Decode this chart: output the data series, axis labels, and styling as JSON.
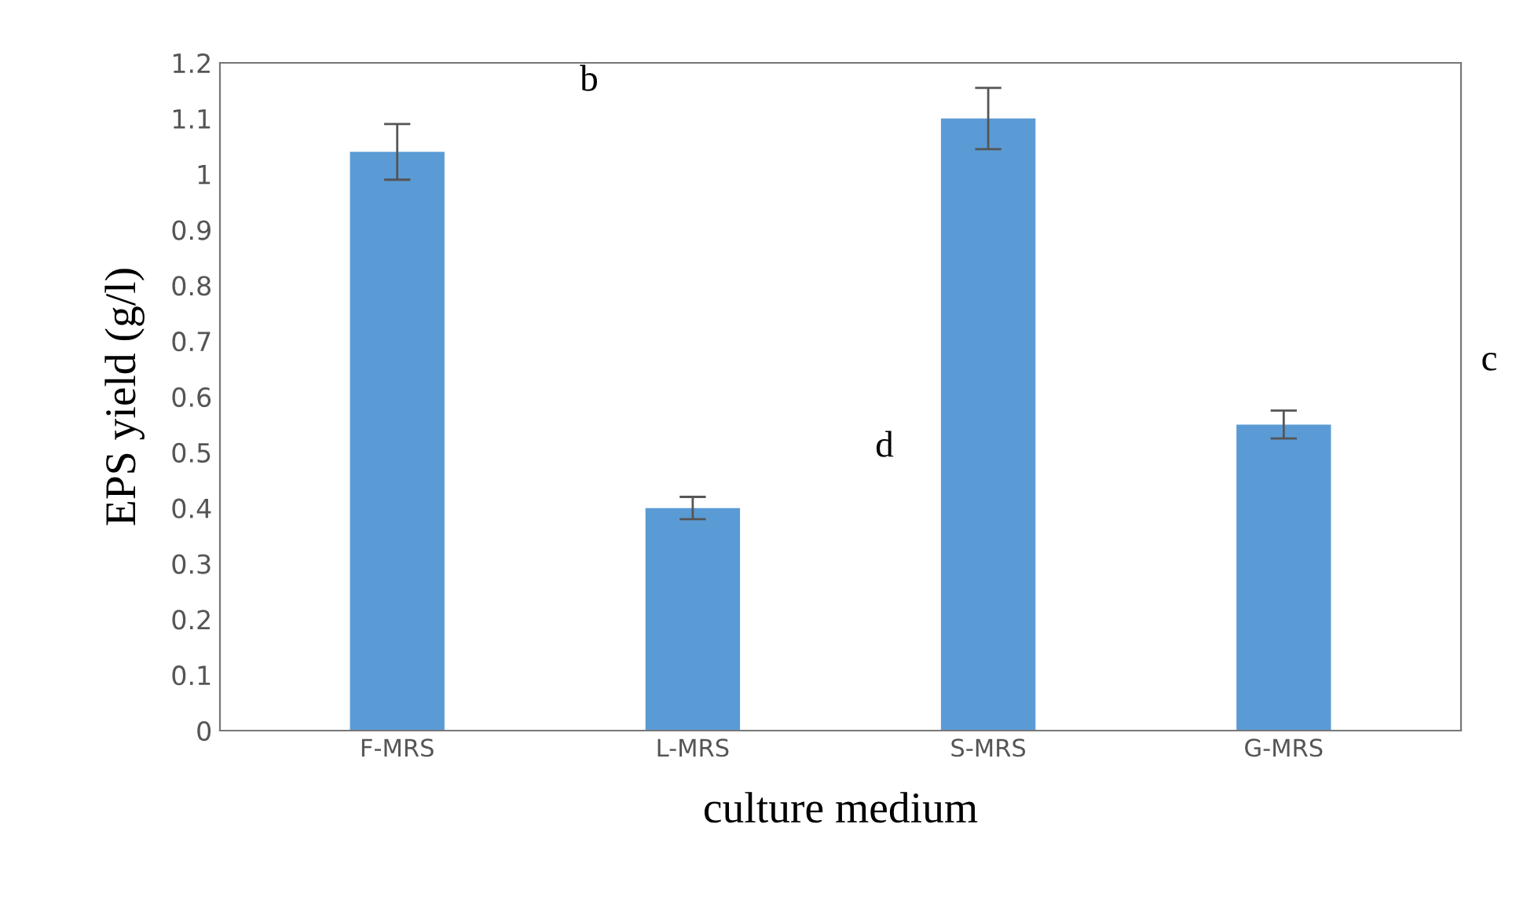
{
  "chart_data": {
    "type": "bar",
    "xlabel": "culture medium",
    "ylabel": "EPS yield (g/l)",
    "categories": [
      "F-MRS",
      "L-MRS",
      "S-MRS",
      "G-MRS"
    ],
    "values": [
      1.04,
      0.4,
      1.1,
      0.55
    ],
    "errors": [
      0.05,
      0.02,
      0.055,
      0.025
    ],
    "color": "#5b9bd5",
    "ylim": [
      0,
      1.2
    ],
    "yticks": [
      0,
      0.1,
      0.2,
      0.3,
      0.4,
      0.5,
      0.6,
      0.7,
      0.8,
      0.9,
      {
        "value": 1,
        "label": "1"
      },
      1.1,
      1.2
    ],
    "grid": false,
    "annotations": [
      "b",
      "d",
      "c"
    ]
  }
}
